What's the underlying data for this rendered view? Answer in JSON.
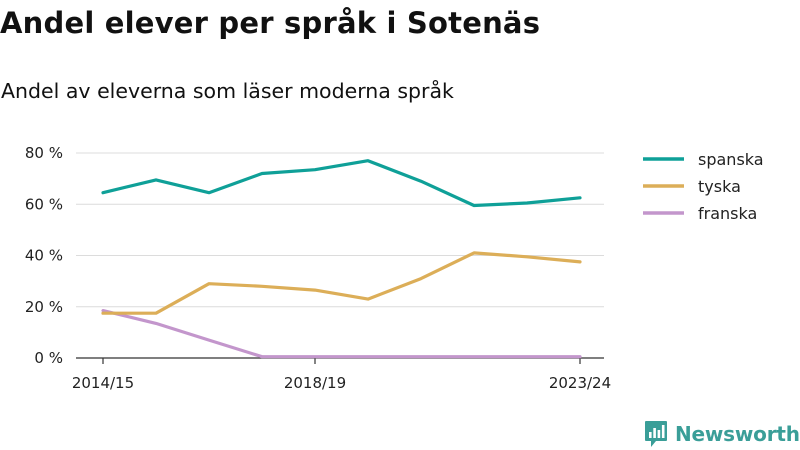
{
  "title": "Andel elever per språk i Sotenäs",
  "subtitle": "Andel av eleverna som läser moderna språk",
  "brand": {
    "name": "Newsworthy",
    "color": "#3a9e98"
  },
  "chart_data": {
    "type": "line",
    "x": [
      "2014/15",
      "2015/16",
      "2016/17",
      "2017/18",
      "2018/19",
      "2019/20",
      "2020/21",
      "2021/22",
      "2022/23",
      "2023/24"
    ],
    "x_tick_labels": [
      "2014/15",
      "2018/19",
      "2023/24"
    ],
    "y_ticks": [
      0,
      20,
      40,
      60,
      80
    ],
    "y_tick_suffix": " %",
    "ylim": [
      0,
      80
    ],
    "grid": true,
    "legend_position": "right",
    "series": [
      {
        "name": "spanska",
        "color": "#0fa098",
        "values": [
          64.5,
          69.5,
          64.5,
          72,
          73.5,
          77,
          69,
          59.5,
          60.5,
          62.5
        ]
      },
      {
        "name": "tyska",
        "color": "#dcae58",
        "values": [
          17.5,
          17.5,
          29,
          28,
          26.5,
          23,
          31,
          41,
          39.5,
          37.5
        ]
      },
      {
        "name": "franska",
        "color": "#c396cc",
        "values": [
          18.5,
          13.5,
          7,
          0.5,
          0.5,
          0.5,
          0.5,
          0.5,
          0.5,
          0.5
        ]
      }
    ]
  }
}
